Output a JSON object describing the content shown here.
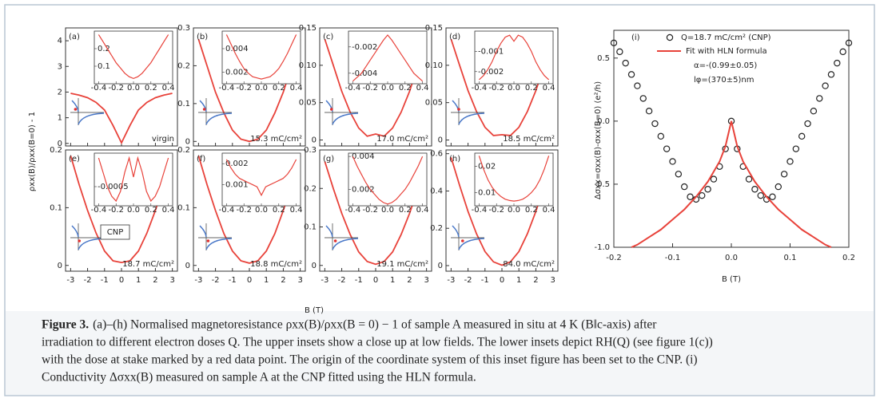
{
  "chart_data": [
    {
      "type": "line",
      "y_label": "ρxx(B)/ρxx(B=0) - 1",
      "x_label": "B (T)",
      "color": "#e8423a",
      "xlim": [
        -3.3,
        3.3
      ],
      "xticks": [
        -3,
        -2,
        -1,
        0,
        1,
        2,
        3
      ],
      "x": [
        -3,
        -2.5,
        -2,
        -1.5,
        -1,
        -0.5,
        0,
        0.5,
        1,
        1.5,
        2,
        2.5,
        3
      ],
      "inset_xlim": [
        -0.45,
        0.45
      ],
      "inset_xticks": [
        -0.4,
        -0.2,
        {
          "value": 0,
          "label": "0.0"
        },
        0.2,
        0.4
      ],
      "inset_x": [
        -0.4,
        -0.35,
        -0.3,
        -0.25,
        -0.2,
        -0.15,
        -0.1,
        -0.05,
        0,
        0.05,
        0.1,
        0.15,
        0.2,
        0.25,
        0.3,
        0.35,
        0.4
      ],
      "cnp_label": "CNP",
      "panels": [
        {
          "label": "(a)",
          "dose": "virgin",
          "ylim": [
            -0.1,
            4.5
          ],
          "yticks": [
            0,
            1,
            2,
            3,
            4
          ],
          "values": [
            1.95,
            1.88,
            1.78,
            1.6,
            1.3,
            0.7,
            0.02,
            0.7,
            1.3,
            1.6,
            1.78,
            1.88,
            1.95
          ],
          "inset": {
            "ylim": [
              0,
              0.3
            ],
            "yticks": [
              0.1,
              0.2
            ],
            "values": [
              0.28,
              0.24,
              0.2,
              0.16,
              0.12,
              0.09,
              0.06,
              0.04,
              0.03,
              0.04,
              0.06,
              0.09,
              0.12,
              0.16,
              0.2,
              0.24,
              0.28
            ]
          }
        },
        {
          "label": "(b)",
          "dose": "15.3 mC/cm²",
          "ylim": [
            -0.012,
            0.3
          ],
          "yticks": [
            0,
            0.1,
            0.2,
            0.3
          ],
          "values": [
            0.27,
            0.2,
            0.13,
            0.075,
            0.03,
            0.006,
            0,
            0.006,
            0.03,
            0.075,
            0.13,
            0.2,
            0.27
          ],
          "inset": {
            "ylim": [
              0.001,
              0.0055
            ],
            "yticks": [
              0.002,
              0.004
            ],
            "values": [
              0.0052,
              0.0044,
              0.0036,
              0.0029,
              0.0023,
              0.0019,
              0.0016,
              0.0015,
              0.0014,
              0.0015,
              0.0016,
              0.0019,
              0.0023,
              0.0029,
              0.0036,
              0.0044,
              0.0052
            ]
          }
        },
        {
          "label": "(c)",
          "dose": "17.0 mC/cm²",
          "ylim": [
            -0.008,
            0.15
          ],
          "yticks": [
            0,
            0.05,
            {
              "value": 0.1,
              "label": "0.10"
            },
            0.15
          ],
          "values": [
            0.135,
            0.1,
            0.065,
            0.037,
            0.016,
            0.005,
            0.008,
            0.005,
            0.016,
            0.037,
            0.065,
            0.1,
            0.135
          ],
          "inset": {
            "ylim": [
              -0.0048,
              -0.0008
            ],
            "yticks": [
              -0.004,
              -0.002
            ],
            "values": [
              -0.0046,
              -0.0043,
              -0.004,
              -0.0035,
              -0.003,
              -0.0025,
              -0.002,
              -0.0015,
              -0.0011,
              -0.0015,
              -0.002,
              -0.0025,
              -0.003,
              -0.0035,
              -0.004,
              -0.0043,
              -0.0046
            ]
          }
        },
        {
          "label": "(d)",
          "dose": "18.5 mC/cm²",
          "ylim": [
            -0.008,
            0.15
          ],
          "yticks": [
            0,
            0.05,
            {
              "value": 0.1,
              "label": "0.10"
            },
            0.15
          ],
          "values": [
            0.135,
            0.1,
            0.066,
            0.038,
            0.017,
            0.006,
            0.007,
            0.006,
            0.017,
            0.038,
            0.066,
            0.1,
            0.135
          ],
          "inset": {
            "ylim": [
              -0.0026,
              0
            ],
            "yticks": [
              -0.002,
              -0.001
            ],
            "values": [
              -0.0024,
              -0.0022,
              -0.0019,
              -0.0015,
              -0.001,
              -0.0006,
              -0.0003,
              -0.0002,
              -0.0005,
              -0.0002,
              -0.0003,
              -0.0006,
              -0.001,
              -0.0015,
              -0.0019,
              -0.0022,
              -0.0024
            ]
          }
        },
        {
          "label": "(e)",
          "dose": "18.7 mC/cm²",
          "ylim": [
            -0.01,
            0.2
          ],
          "yticks": [
            0,
            0.1,
            0.2
          ],
          "values": [
            0.19,
            0.14,
            0.095,
            0.056,
            0.025,
            0.008,
            0.005,
            0.008,
            0.025,
            0.056,
            0.095,
            0.14,
            0.19
          ],
          "inset": {
            "ylim": [
              -0.0009,
              0.0002
            ],
            "yticks": [
              -0.0005
            ],
            "values": [
              0.0001,
              -0.0002,
              -0.0005,
              -0.0007,
              -0.0008,
              -0.0006,
              -0.0002,
              0.0001,
              -0.0003,
              0.0001,
              -0.0002,
              -0.0006,
              -0.0008,
              -0.0007,
              -0.0005,
              -0.0002,
              0.0001
            ]
          }
        },
        {
          "label": "(f)",
          "dose": "18.8 mC/cm²",
          "ylim": [
            -0.01,
            0.2
          ],
          "yticks": [
            0,
            0.1,
            0.2
          ],
          "values": [
            0.19,
            0.14,
            0.095,
            0.055,
            0.025,
            0.008,
            0.004,
            0.008,
            0.025,
            0.055,
            0.095,
            0.14,
            0.19
          ],
          "inset": {
            "ylim": [
              0,
              0.0025
            ],
            "yticks": [
              0.001,
              0.002
            ],
            "values": [
              0.0022,
              0.0018,
              0.0015,
              0.0013,
              0.0012,
              0.0011,
              0.001,
              0.0009,
              0.0005,
              0.0009,
              0.001,
              0.0011,
              0.0012,
              0.0013,
              0.0015,
              0.0018,
              0.0022
            ]
          }
        },
        {
          "label": "(g)",
          "dose": "19.1 mC/cm²",
          "ylim": [
            -0.015,
            0.3
          ],
          "yticks": [
            0,
            0.1,
            0.2,
            0.3
          ],
          "values": [
            0.27,
            0.2,
            0.135,
            0.08,
            0.035,
            0.01,
            0.003,
            0.01,
            0.035,
            0.08,
            0.135,
            0.2,
            0.27
          ],
          "inset": {
            "ylim": [
              0.001,
              0.0042
            ],
            "yticks": [
              0.002,
              0.004
            ],
            "values": [
              0.004,
              0.0034,
              0.0029,
              0.0024,
              0.002,
              0.0017,
              0.0014,
              0.0012,
              0.0011,
              0.0012,
              0.0014,
              0.0017,
              0.002,
              0.0024,
              0.0029,
              0.0034,
              0.004
            ]
          }
        },
        {
          "label": "(h)",
          "dose": "84.0 mC/cm²",
          "ylim": [
            -0.03,
            0.62
          ],
          "yticks": [
            0,
            0.2,
            0.4,
            0.6
          ],
          "values": [
            0.58,
            0.43,
            0.29,
            0.17,
            0.075,
            0.02,
            0.002,
            0.02,
            0.075,
            0.17,
            0.29,
            0.43,
            0.58
          ],
          "inset": {
            "ylim": [
              0.005,
              0.025
            ],
            "yticks": [
              0.01,
              0.02
            ],
            "values": [
              0.024,
              0.019,
              0.015,
              0.012,
              0.01,
              0.0085,
              0.0075,
              0.007,
              0.0068,
              0.007,
              0.0075,
              0.0085,
              0.01,
              0.012,
              0.015,
              0.019,
              0.024
            ]
          }
        }
      ]
    },
    {
      "type": "scatter",
      "title": "(i)",
      "x_label": "B (T)",
      "y_label": "Δσxx=σxx(B)-σxx(B=0) (e²/h)",
      "xlim": [
        -0.2,
        0.2
      ],
      "ylim": [
        -1.0,
        0.72
      ],
      "xticks": [
        -0.2,
        -0.1,
        {
          "value": 0,
          "label": "0.0"
        },
        0.1,
        0.2
      ],
      "yticks": [
        {
          "value": -1,
          "label": "-1.0"
        },
        -0.5,
        {
          "value": 0,
          "label": "0.0"
        },
        0.5
      ],
      "annotations": [
        "α=-(0.99±0.05)",
        "lφ=(370±5)nm"
      ],
      "series": [
        {
          "name": "Q=18.7 mC/cm² (CNP)",
          "color": "#222222",
          "x": [
            -0.2,
            -0.19,
            -0.18,
            -0.17,
            -0.16,
            -0.15,
            -0.14,
            -0.13,
            -0.12,
            -0.11,
            -0.1,
            -0.09,
            -0.08,
            -0.07,
            -0.06,
            -0.05,
            -0.04,
            -0.03,
            -0.02,
            -0.01,
            0,
            0.01,
            0.02,
            0.03,
            0.04,
            0.05,
            0.06,
            0.07,
            0.08,
            0.09,
            0.1,
            0.11,
            0.12,
            0.13,
            0.14,
            0.15,
            0.16,
            0.17,
            0.18,
            0.19,
            0.2
          ],
          "values": [
            0.62,
            0.55,
            0.46,
            0.37,
            0.28,
            0.18,
            0.08,
            -0.02,
            -0.12,
            -0.22,
            -0.32,
            -0.42,
            -0.52,
            -0.6,
            -0.62,
            -0.59,
            -0.54,
            -0.46,
            -0.36,
            -0.22,
            0,
            -0.22,
            -0.36,
            -0.46,
            -0.54,
            -0.59,
            -0.62,
            -0.6,
            -0.52,
            -0.42,
            -0.32,
            -0.22,
            -0.12,
            -0.02,
            0.08,
            0.18,
            0.28,
            0.37,
            0.46,
            0.55,
            0.62
          ]
        },
        {
          "name": "Fit with HLN formula",
          "color": "#e8423a",
          "x": [
            -0.17,
            -0.16,
            -0.14,
            -0.12,
            -0.1,
            -0.08,
            -0.06,
            -0.04,
            -0.02,
            -0.01,
            0,
            0.01,
            0.02,
            0.04,
            0.06,
            0.08,
            0.1,
            0.12,
            0.14,
            0.16,
            0.17
          ],
          "values": [
            -1.0,
            -0.98,
            -0.92,
            -0.86,
            -0.78,
            -0.7,
            -0.6,
            -0.48,
            -0.32,
            -0.2,
            0,
            -0.2,
            -0.32,
            -0.48,
            -0.6,
            -0.7,
            -0.78,
            -0.86,
            -0.92,
            -0.98,
            -1.0
          ]
        }
      ]
    }
  ],
  "caption": {
    "label": "Figure 3.",
    "lines": [
      "(a)–(h) Normalised magnetoresistance ρxx(B)/ρxx(B = 0) − 1 of sample A measured in situ at 4 K (B‖c-axis) after",
      "irradiation to different electron doses Q. The upper insets show a close up at low fields. The lower insets depict RH(Q) (see figure 1(c))",
      "with the dose at stake marked by a red data point. The origin of the coordinate system of this inset figure has been set to the CNP. (i)",
      "Conductivity Δσxx(B) measured on sample A at the CNP fitted using the HLN formula."
    ]
  }
}
